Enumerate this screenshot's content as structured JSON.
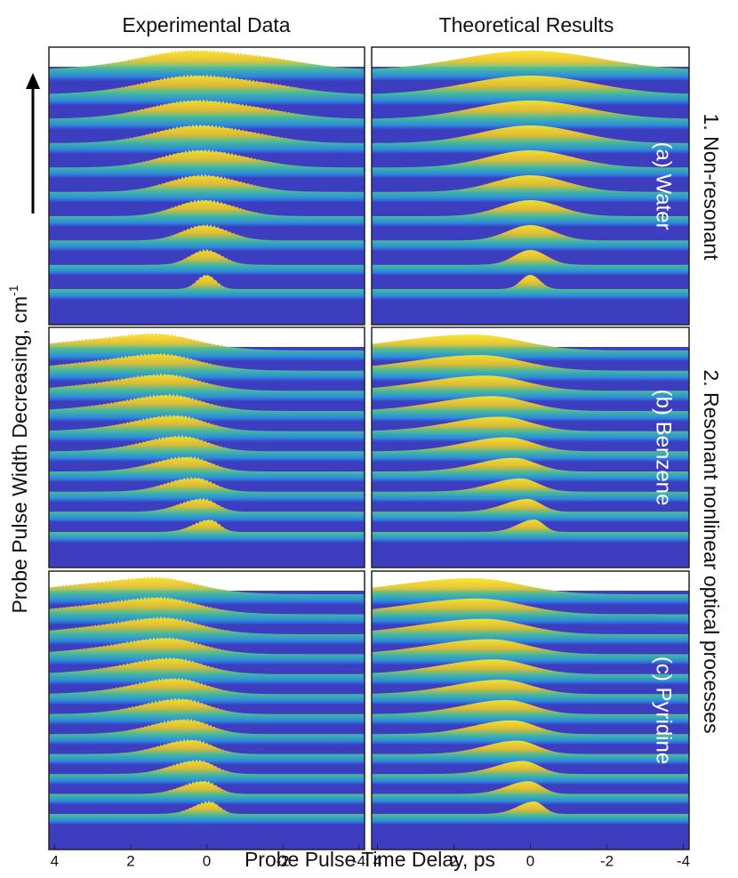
{
  "figure": {
    "column_titles": [
      "Experimental Data",
      "Theoretical Results"
    ],
    "ylabel": "Probe Pulse Width Decreasing, cm",
    "ylabel_sup": "-1",
    "xlabel": "Probe Pulse Time Delay, ps",
    "row_groups": [
      "1. Non-resonant",
      "2. Resonant nonlinear optical processes"
    ],
    "panel_labels": [
      "(a) Water",
      "(b) Benzene",
      "(c) Pyridine"
    ],
    "xticks": [
      4,
      2,
      0,
      -2,
      -4
    ],
    "xlim": [
      4.15,
      -4.15
    ]
  }
}
